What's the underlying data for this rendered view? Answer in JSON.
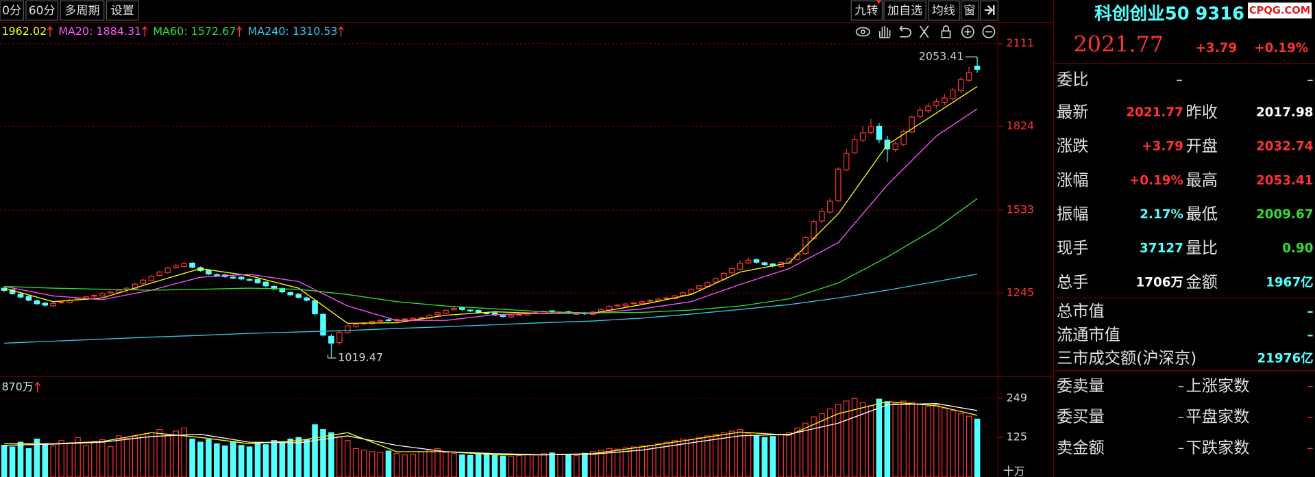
{
  "toolbar": {
    "left": [
      "0分",
      "60分",
      "多周期",
      "设置"
    ],
    "right": [
      "九转",
      "加自选",
      "均线",
      "窗"
    ]
  },
  "watermark": "CPQG.COM",
  "chart_data": [
    {
      "type": "candlestick",
      "ylim": [
        955,
        2181
      ],
      "yticks": [
        2111,
        1824,
        1533,
        1245
      ],
      "grid": true,
      "up_color": "#ff3232",
      "down_color": "#54ffff",
      "high_index": 119,
      "low_index": 40,
      "candles": [
        [
          1262,
          1267,
          1249,
          1254
        ],
        [
          1256,
          1259,
          1239,
          1243
        ],
        [
          1241,
          1245,
          1227,
          1231
        ],
        [
          1233,
          1236,
          1216,
          1220
        ],
        [
          1218,
          1223,
          1204,
          1208
        ],
        [
          1210,
          1213,
          1198,
          1203
        ],
        [
          1201,
          1213,
          1197,
          1209
        ],
        [
          1211,
          1218,
          1207,
          1214
        ],
        [
          1212,
          1224,
          1209,
          1220
        ],
        [
          1222,
          1230,
          1218,
          1226
        ],
        [
          1224,
          1236,
          1221,
          1232
        ],
        [
          1234,
          1241,
          1230,
          1237
        ],
        [
          1235,
          1247,
          1232,
          1243
        ],
        [
          1245,
          1253,
          1241,
          1249
        ],
        [
          1247,
          1259,
          1244,
          1255
        ],
        [
          1257,
          1266,
          1253,
          1262
        ],
        [
          1260,
          1280,
          1257,
          1276
        ],
        [
          1278,
          1294,
          1274,
          1290
        ],
        [
          1288,
          1308,
          1285,
          1304
        ],
        [
          1306,
          1322,
          1302,
          1318
        ],
        [
          1316,
          1336,
          1313,
          1332
        ],
        [
          1334,
          1345,
          1329,
          1339
        ],
        [
          1337,
          1355,
          1333,
          1347
        ],
        [
          1349,
          1352,
          1331,
          1335
        ],
        [
          1333,
          1337,
          1319,
          1323
        ],
        [
          1325,
          1328,
          1307,
          1311
        ],
        [
          1309,
          1313,
          1302,
          1306
        ],
        [
          1308,
          1311,
          1298,
          1302
        ],
        [
          1300,
          1305,
          1294,
          1298
        ],
        [
          1300,
          1303,
          1290,
          1294
        ],
        [
          1292,
          1297,
          1286,
          1290
        ],
        [
          1292,
          1295,
          1277,
          1281
        ],
        [
          1283,
          1286,
          1266,
          1270
        ],
        [
          1268,
          1272,
          1255,
          1259
        ],
        [
          1261,
          1264,
          1245,
          1249
        ],
        [
          1247,
          1251,
          1235,
          1239
        ],
        [
          1241,
          1244,
          1226,
          1230
        ],
        [
          1228,
          1232,
          1216,
          1220
        ],
        [
          1218,
          1221,
          1168,
          1173
        ],
        [
          1171,
          1175,
          1094,
          1099
        ],
        [
          1095,
          1102,
          1019.47,
          1071
        ],
        [
          1073,
          1113,
          1066,
          1109
        ],
        [
          1107,
          1135,
          1103,
          1131
        ],
        [
          1129,
          1140,
          1125,
          1136
        ],
        [
          1138,
          1145,
          1133,
          1141
        ],
        [
          1139,
          1150,
          1135,
          1146
        ],
        [
          1148,
          1154,
          1144,
          1150
        ],
        [
          1152,
          1156,
          1146,
          1151
        ],
        [
          1149,
          1157,
          1145,
          1153
        ],
        [
          1155,
          1159,
          1150,
          1155
        ],
        [
          1153,
          1161,
          1149,
          1157
        ],
        [
          1159,
          1164,
          1155,
          1160
        ],
        [
          1158,
          1172,
          1155,
          1168
        ],
        [
          1170,
          1181,
          1166,
          1177
        ],
        [
          1175,
          1189,
          1172,
          1185
        ],
        [
          1187,
          1197,
          1183,
          1192
        ],
        [
          1194,
          1198,
          1184,
          1188
        ],
        [
          1186,
          1190,
          1179,
          1183
        ],
        [
          1185,
          1188,
          1174,
          1178
        ],
        [
          1176,
          1180,
          1170,
          1174
        ],
        [
          1176,
          1179,
          1165,
          1169
        ],
        [
          1167,
          1171,
          1160,
          1164
        ],
        [
          1162,
          1171,
          1158,
          1167
        ],
        [
          1169,
          1175,
          1165,
          1171
        ],
        [
          1169,
          1178,
          1166,
          1174
        ],
        [
          1176,
          1181,
          1172,
          1177
        ],
        [
          1175,
          1185,
          1171,
          1181
        ],
        [
          1183,
          1186,
          1175,
          1179
        ],
        [
          1177,
          1182,
          1173,
          1178
        ],
        [
          1180,
          1183,
          1172,
          1176
        ],
        [
          1174,
          1179,
          1170,
          1174
        ],
        [
          1176,
          1179,
          1169,
          1173
        ],
        [
          1171,
          1183,
          1168,
          1179
        ],
        [
          1181,
          1192,
          1178,
          1188
        ],
        [
          1186,
          1202,
          1183,
          1198
        ],
        [
          1200,
          1207,
          1195,
          1203
        ],
        [
          1201,
          1211,
          1198,
          1207
        ],
        [
          1209,
          1215,
          1204,
          1211
        ],
        [
          1209,
          1219,
          1206,
          1215
        ],
        [
          1217,
          1224,
          1212,
          1220
        ],
        [
          1218,
          1228,
          1215,
          1224
        ],
        [
          1226,
          1232,
          1221,
          1228
        ],
        [
          1226,
          1239,
          1223,
          1235
        ],
        [
          1237,
          1250,
          1233,
          1246
        ],
        [
          1244,
          1262,
          1241,
          1258
        ],
        [
          1260,
          1274,
          1256,
          1270
        ],
        [
          1268,
          1285,
          1265,
          1281
        ],
        [
          1283,
          1299,
          1279,
          1295
        ],
        [
          1293,
          1317,
          1290,
          1313
        ],
        [
          1315,
          1334,
          1311,
          1330
        ],
        [
          1328,
          1358,
          1325,
          1348
        ],
        [
          1350,
          1368,
          1345,
          1359
        ],
        [
          1361,
          1365,
          1347,
          1352
        ],
        [
          1350,
          1354,
          1339,
          1344
        ],
        [
          1346,
          1349,
          1334,
          1339
        ],
        [
          1337,
          1355,
          1333,
          1351
        ],
        [
          1349,
          1368,
          1345,
          1364
        ],
        [
          1362,
          1385,
          1358,
          1380
        ],
        [
          1382,
          1442,
          1378,
          1437
        ],
        [
          1435,
          1500,
          1430,
          1493
        ],
        [
          1495,
          1540,
          1488,
          1528
        ],
        [
          1526,
          1575,
          1520,
          1564
        ],
        [
          1566,
          1682,
          1560,
          1675
        ],
        [
          1673,
          1745,
          1668,
          1730
        ],
        [
          1732,
          1795,
          1725,
          1778
        ],
        [
          1776,
          1825,
          1770,
          1801
        ],
        [
          1803,
          1850,
          1795,
          1822
        ],
        [
          1824,
          1835,
          1765,
          1778
        ],
        [
          1776,
          1790,
          1700,
          1745
        ],
        [
          1743,
          1772,
          1735,
          1763
        ],
        [
          1761,
          1812,
          1755,
          1806
        ],
        [
          1804,
          1862,
          1800,
          1856
        ],
        [
          1858,
          1892,
          1850,
          1880
        ],
        [
          1878,
          1905,
          1870,
          1894
        ],
        [
          1896,
          1920,
          1886,
          1909
        ],
        [
          1907,
          1935,
          1898,
          1922
        ],
        [
          1920,
          1958,
          1915,
          1950
        ],
        [
          1948,
          1995,
          1940,
          1986
        ],
        [
          1984,
          2030,
          1978,
          2010
        ],
        [
          2032.74,
          2053.41,
          2009.67,
          2021.77
        ]
      ],
      "lines": [
        {
          "label": "1962.02",
          "color": "#ffff00",
          "x": [
            0,
            6,
            12,
            18,
            24,
            30,
            36,
            42,
            48,
            54,
            60,
            66,
            72,
            78,
            84,
            90,
            96,
            102,
            108,
            114,
            119
          ],
          "values": [
            1262,
            1215,
            1228,
            1280,
            1330,
            1305,
            1262,
            1140,
            1142,
            1168,
            1180,
            1174,
            1175,
            1205,
            1240,
            1318,
            1350,
            1520,
            1760,
            1870,
            1962.02
          ]
        },
        {
          "label": "MA20: 1884.31",
          "color": "#ff55ff",
          "x": [
            0,
            6,
            12,
            18,
            24,
            30,
            36,
            42,
            48,
            54,
            60,
            66,
            72,
            78,
            84,
            90,
            96,
            102,
            108,
            114,
            119
          ],
          "values": [
            1268,
            1235,
            1222,
            1255,
            1300,
            1310,
            1285,
            1200,
            1150,
            1150,
            1170,
            1175,
            1174,
            1190,
            1215,
            1275,
            1330,
            1420,
            1620,
            1790,
            1884.31
          ]
        },
        {
          "label": "MA60: 1572.67",
          "color": "#33dd33",
          "x": [
            0,
            6,
            12,
            18,
            24,
            30,
            36,
            42,
            48,
            54,
            60,
            66,
            72,
            78,
            84,
            90,
            96,
            102,
            108,
            114,
            119
          ],
          "values": [
            1268,
            1262,
            1258,
            1255,
            1258,
            1262,
            1258,
            1240,
            1215,
            1200,
            1190,
            1180,
            1176,
            1178,
            1186,
            1200,
            1225,
            1280,
            1370,
            1470,
            1572.67
          ]
        },
        {
          "label": "MA240: 1310.53",
          "color": "#33c8e8",
          "x": [
            0,
            6,
            12,
            18,
            24,
            30,
            36,
            42,
            48,
            54,
            60,
            66,
            72,
            78,
            84,
            90,
            96,
            102,
            108,
            114,
            119
          ],
          "values": [
            1071,
            1078,
            1085,
            1092,
            1098,
            1105,
            1110,
            1115,
            1122,
            1128,
            1135,
            1142,
            1148,
            1158,
            1172,
            1188,
            1205,
            1228,
            1255,
            1285,
            1310.53
          ]
        }
      ]
    },
    {
      "type": "bar",
      "label": "870万",
      "unit": "十万",
      "ylim": [
        0,
        312
      ],
      "yticks": [
        249,
        125
      ],
      "grid": true,
      "values": [
        100,
        95,
        110,
        90,
        120,
        105,
        98,
        115,
        108,
        125,
        100,
        112,
        118,
        96,
        130,
        122,
        128,
        135,
        140,
        150,
        132,
        145,
        155,
        120,
        110,
        118,
        105,
        98,
        112,
        100,
        95,
        108,
        102,
        115,
        110,
        120,
        125,
        118,
        165,
        150,
        140,
        128,
        115,
        90,
        85,
        80,
        78,
        82,
        75,
        70,
        72,
        80,
        85,
        90,
        78,
        74,
        70,
        68,
        72,
        75,
        70,
        66,
        64,
        68,
        72,
        70,
        74,
        76,
        72,
        70,
        68,
        75,
        80,
        85,
        90,
        88,
        92,
        95,
        98,
        100,
        105,
        110,
        115,
        120,
        118,
        125,
        130,
        135,
        140,
        145,
        150,
        138,
        130,
        125,
        128,
        135,
        140,
        155,
        170,
        190,
        200,
        215,
        230,
        240,
        248,
        235,
        225,
        246,
        238,
        232,
        240,
        236,
        230,
        222,
        228,
        218,
        210,
        200,
        192,
        183
      ],
      "lines": [
        {
          "color": "#ffff00",
          "x": [
            0,
            6,
            12,
            18,
            24,
            30,
            36,
            42,
            48,
            54,
            60,
            66,
            72,
            78,
            84,
            90,
            96,
            102,
            108,
            114,
            119
          ],
          "values": [
            105,
            105,
            112,
            140,
            125,
            105,
            115,
            140,
            80,
            80,
            70,
            70,
            74,
            95,
            118,
            142,
            132,
            200,
            238,
            225,
            195
          ]
        },
        {
          "color": "#ffffff",
          "x": [
            0,
            6,
            12,
            18,
            24,
            30,
            36,
            42,
            48,
            54,
            60,
            66,
            72,
            78,
            84,
            90,
            96,
            102,
            108,
            114,
            119
          ],
          "values": [
            100,
            104,
            110,
            128,
            135,
            110,
            108,
            130,
            100,
            80,
            74,
            70,
            72,
            85,
            108,
            130,
            135,
            170,
            228,
            232,
            210
          ]
        }
      ]
    }
  ],
  "quote": {
    "name": "科创创业50 9316",
    "price": "2021.77",
    "change": "+3.79",
    "change_pct": "+0.19%",
    "ratio_row": {
      "label": "委比",
      "values": [
        "–",
        "–"
      ]
    },
    "rows": [
      {
        "cells": [
          "最新",
          "2021.77",
          "昨收",
          "2017.98"
        ],
        "colors": [
          "#ff3232",
          "#ffffff"
        ]
      },
      {
        "cells": [
          "涨跌",
          "+3.79",
          "开盘",
          "2032.74"
        ],
        "colors": [
          "#ff3232",
          "#ff3232"
        ]
      },
      {
        "cells": [
          "涨幅",
          "+0.19%",
          "最高",
          "2053.41"
        ],
        "colors": [
          "#ff3232",
          "#ff3232"
        ]
      },
      {
        "cells": [
          "振幅",
          "2.17%",
          "最低",
          "2009.67"
        ],
        "colors": [
          "#54ffff",
          "#33dd33"
        ]
      },
      {
        "cells": [
          "现手",
          "37127",
          "量比",
          "0.90"
        ],
        "colors": [
          "#54ffff",
          "#33dd33"
        ]
      },
      {
        "cells": [
          "总手",
          "1706万",
          "金额",
          "1967亿"
        ],
        "colors": [
          "#ffffff",
          "#54ffff"
        ]
      }
    ],
    "market_rows": [
      {
        "label": "总市值",
        "value": "–"
      },
      {
        "label": "流通市值",
        "value": "–"
      },
      {
        "label": "三市成交额(沪深京)",
        "value": "21976亿"
      }
    ],
    "order_rows": [
      [
        "委卖量",
        "–",
        "上涨家数",
        "–"
      ],
      [
        "委买量",
        "–",
        "平盘家数",
        "–"
      ],
      [
        "卖金额",
        "–",
        "下跌家数",
        "–"
      ]
    ]
  }
}
